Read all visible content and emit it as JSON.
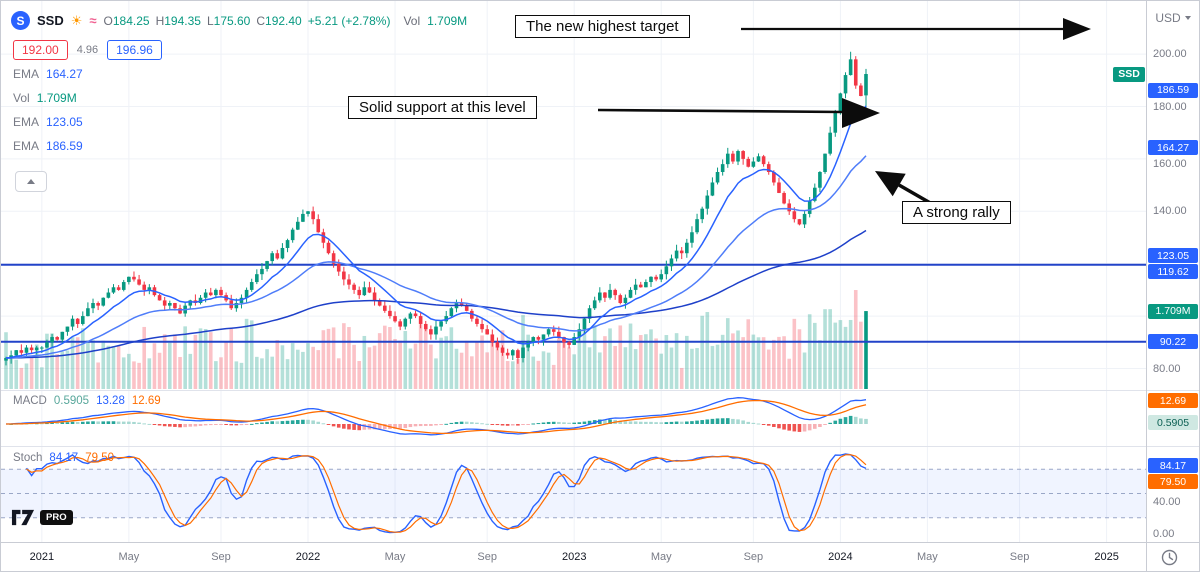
{
  "header": {
    "symbol_initial": "S",
    "symbol": "SSD",
    "icons": {
      "sun": "☀",
      "waves": "≈"
    },
    "ohlc": {
      "o_k": "O",
      "o_v": "184.25",
      "h_k": "H",
      "h_v": "194.35",
      "l_k": "L",
      "l_v": "175.60",
      "c_k": "C",
      "c_v": "192.40",
      "change": "+5.21 (+2.78%)"
    },
    "vol_label": "Vol",
    "vol_value": "1.709M",
    "price_boxes": {
      "sell": "192.00",
      "spread": "4.96",
      "buy": "196.96"
    },
    "legend_rows": [
      {
        "label": "EMA",
        "value": "164.27",
        "color": "blue"
      },
      {
        "label": "Vol",
        "value": "1.709M",
        "color": "teal"
      },
      {
        "label": "EMA",
        "value": "123.05",
        "color": "blue"
      },
      {
        "label": "EMA",
        "value": "186.59",
        "color": "blue"
      }
    ]
  },
  "top_right": {
    "currency": "USD"
  },
  "annotations": [
    {
      "text": "The new highest target"
    },
    {
      "text": "Solid support at this level"
    },
    {
      "text": "A strong rally"
    }
  ],
  "panes": {
    "macd": {
      "title": "MACD",
      "hist": "0.5905",
      "macd": "13.28",
      "signal": "12.69"
    },
    "stoch": {
      "title": "Stoch",
      "k": "84.17",
      "d": "79.50"
    }
  },
  "axis_labels": [
    {
      "text": "200.00",
      "value": 200,
      "pane": "price",
      "style": "plain"
    },
    {
      "text": "SSD",
      "value": 192.4,
      "pane": "price",
      "style": "tag"
    },
    {
      "text": "186.59",
      "value": 186.59,
      "pane": "price",
      "style": "blue"
    },
    {
      "text": "180.00",
      "value": 180,
      "pane": "price",
      "style": "plain"
    },
    {
      "text": "164.27",
      "value": 164.27,
      "pane": "price",
      "style": "blue"
    },
    {
      "text": "160.00",
      "value": 160,
      "pane": "price",
      "style": "plain"
    },
    {
      "text": "140.00",
      "value": 140,
      "pane": "price",
      "style": "plain"
    },
    {
      "text": "123.05",
      "value": 123.05,
      "pane": "price",
      "style": "blue"
    },
    {
      "text": "119.62",
      "value": 119.62,
      "pane": "price",
      "style": "blue"
    },
    {
      "text": "1.709M",
      "value": 1.709,
      "pane": "volume",
      "style": "teal"
    },
    {
      "text": "90.22",
      "value": 90.22,
      "pane": "price",
      "style": "blue"
    },
    {
      "text": "80.00",
      "value": 80,
      "pane": "price",
      "style": "plain"
    },
    {
      "text": "12.69",
      "value": 12.69,
      "pane": "macd",
      "style": "orange"
    },
    {
      "text": "0.5905",
      "value": 0.5905,
      "pane": "macd",
      "style": "pale"
    },
    {
      "text": "84.17",
      "value": 84.17,
      "pane": "stoch",
      "style": "blue"
    },
    {
      "text": "79.50",
      "value": 79.5,
      "pane": "stoch",
      "style": "orange"
    },
    {
      "text": "40.00",
      "value": 40,
      "pane": "stoch",
      "style": "plain"
    },
    {
      "text": "0.00",
      "value": 0,
      "pane": "stoch",
      "style": "plain"
    }
  ],
  "branding": {
    "pro": "PRO"
  },
  "chart_data": {
    "type": "candlestick",
    "symbol": "SSD",
    "interval_hint": "weekly",
    "current_bar": {
      "open": 184.25,
      "high": 194.35,
      "low": 175.6,
      "close": 192.4,
      "volume_m": 1.709,
      "change": 5.21,
      "change_pct": 2.78
    },
    "indicators": {
      "ema_fast": 186.59,
      "ema_medium": 164.27,
      "ema_slow": 123.05,
      "macd_hist": 0.5905,
      "macd_line": 13.28,
      "macd_signal": 12.69,
      "stoch_k": 84.17,
      "stoch_d": 79.5
    },
    "support_levels": [
      119.62,
      90.22
    ],
    "price_alerts": {
      "lower": 192.0,
      "spread": 4.96,
      "upper": 196.96
    },
    "price_gridlines": [
      200,
      180,
      160,
      140,
      120,
      100,
      80
    ],
    "ylim": [
      75,
      205
    ],
    "x_ticks": {
      "labels": [
        "2021",
        "May",
        "Sep",
        "2022",
        "May",
        "Sep",
        "2023",
        "May",
        "Sep",
        "2024",
        "May",
        "Sep",
        "2025"
      ],
      "week_indices": [
        7,
        24,
        42,
        59,
        76,
        94,
        111,
        128,
        146,
        163,
        180,
        198,
        215
      ]
    },
    "weekly_closes": [
      84,
      85,
      87,
      86,
      88,
      87,
      88,
      88,
      90,
      92,
      91,
      94,
      96,
      99,
      97,
      100,
      103,
      105,
      104,
      107,
      109,
      111,
      110,
      113,
      115,
      114,
      112,
      110,
      111,
      108,
      106,
      104,
      105,
      103,
      101,
      104,
      106,
      105,
      107,
      109,
      108,
      110,
      108,
      106,
      103,
      105,
      107,
      110,
      113,
      116,
      118,
      121,
      124,
      122,
      126,
      129,
      133,
      136,
      139,
      140,
      137,
      132,
      128,
      124,
      120,
      117,
      114,
      112,
      110,
      108,
      111,
      109,
      106,
      104,
      102,
      100,
      98,
      96,
      99,
      101,
      100,
      97,
      95,
      93,
      96,
      98,
      100,
      103,
      105,
      104,
      102,
      99,
      97,
      95,
      93,
      90,
      88,
      86,
      85,
      87,
      84,
      88,
      90,
      92,
      91,
      93,
      95,
      94,
      92,
      90,
      89,
      92,
      95,
      99,
      103,
      106,
      109,
      107,
      110,
      108,
      105,
      107,
      110,
      112,
      111,
      113,
      115,
      114,
      116,
      119,
      122,
      125,
      124,
      128,
      132,
      137,
      141,
      146,
      151,
      155,
      158,
      162,
      159,
      163,
      160,
      157,
      159,
      161,
      158,
      155,
      151,
      147,
      143,
      140,
      137,
      135,
      139,
      144,
      149,
      155,
      162,
      170,
      178,
      185,
      192,
      198,
      188,
      184,
      192.4
    ]
  }
}
